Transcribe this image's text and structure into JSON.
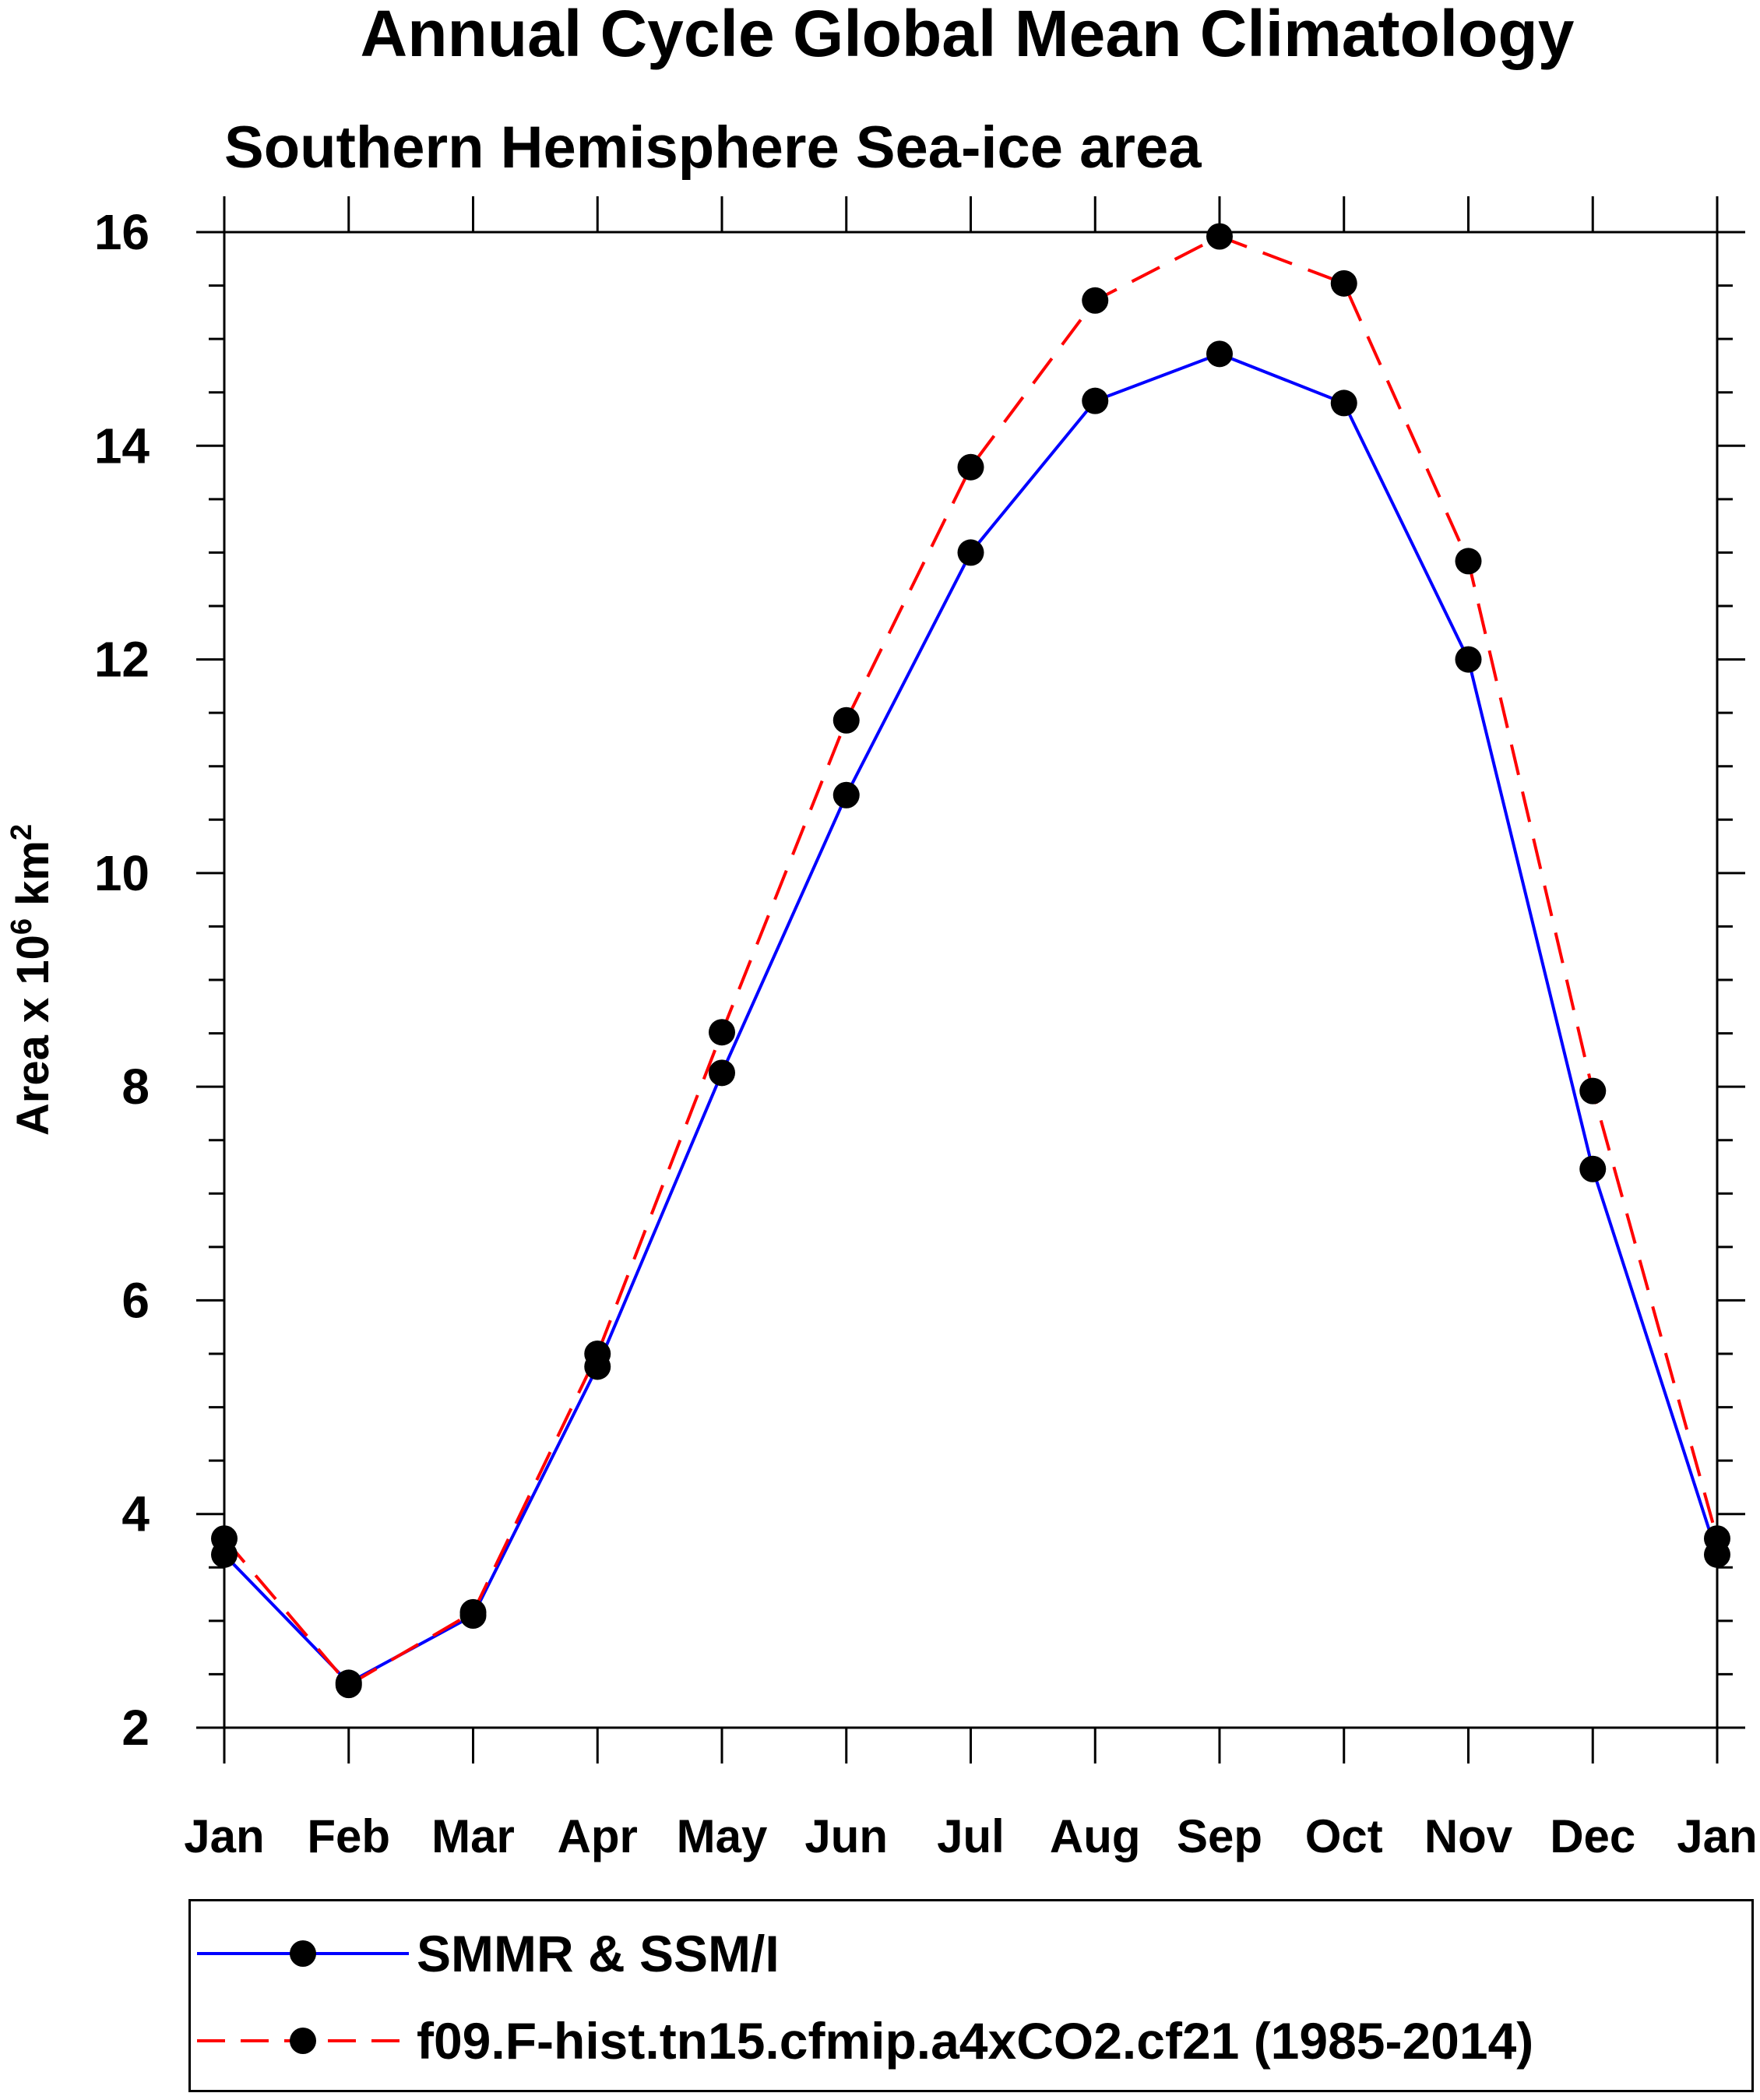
{
  "chart_data": {
    "type": "line",
    "title": "Annual Cycle Global Mean Climatology",
    "subtitle": "Southern Hemisphere Sea-ice area",
    "ylabel_main": "Area x 10",
    "ylabel_exp": "6",
    "ylabel_unit": " km",
    "ylabel_unit_exp": "2",
    "xlabel": "",
    "categories": [
      "Jan",
      "Feb",
      "Mar",
      "Apr",
      "May",
      "Jun",
      "Jul",
      "Aug",
      "Sep",
      "Oct",
      "Nov",
      "Dec",
      "Jan"
    ],
    "ylim": [
      2,
      16
    ],
    "yticks": [
      2,
      4,
      6,
      8,
      10,
      12,
      14,
      16
    ],
    "y_minor_step": 0.5,
    "series": [
      {
        "name": "SMMR & SSM/I",
        "color": "#0000ff",
        "dash": "solid",
        "values": [
          3.62,
          2.42,
          3.05,
          5.38,
          8.13,
          10.73,
          13.0,
          14.42,
          14.86,
          14.4,
          12.0,
          7.23,
          3.62
        ]
      },
      {
        "name": "f09.F-hist.tn15.cfmip.a4xCO2.cf21 (1985-2014)",
        "color": "#ff0000",
        "dash": "dashed",
        "values": [
          3.77,
          2.4,
          3.08,
          5.5,
          8.51,
          11.43,
          13.8,
          15.36,
          15.96,
          15.52,
          12.92,
          7.96,
          3.77
        ]
      }
    ],
    "marker_color": "#000000",
    "legend_position": "bottom"
  }
}
